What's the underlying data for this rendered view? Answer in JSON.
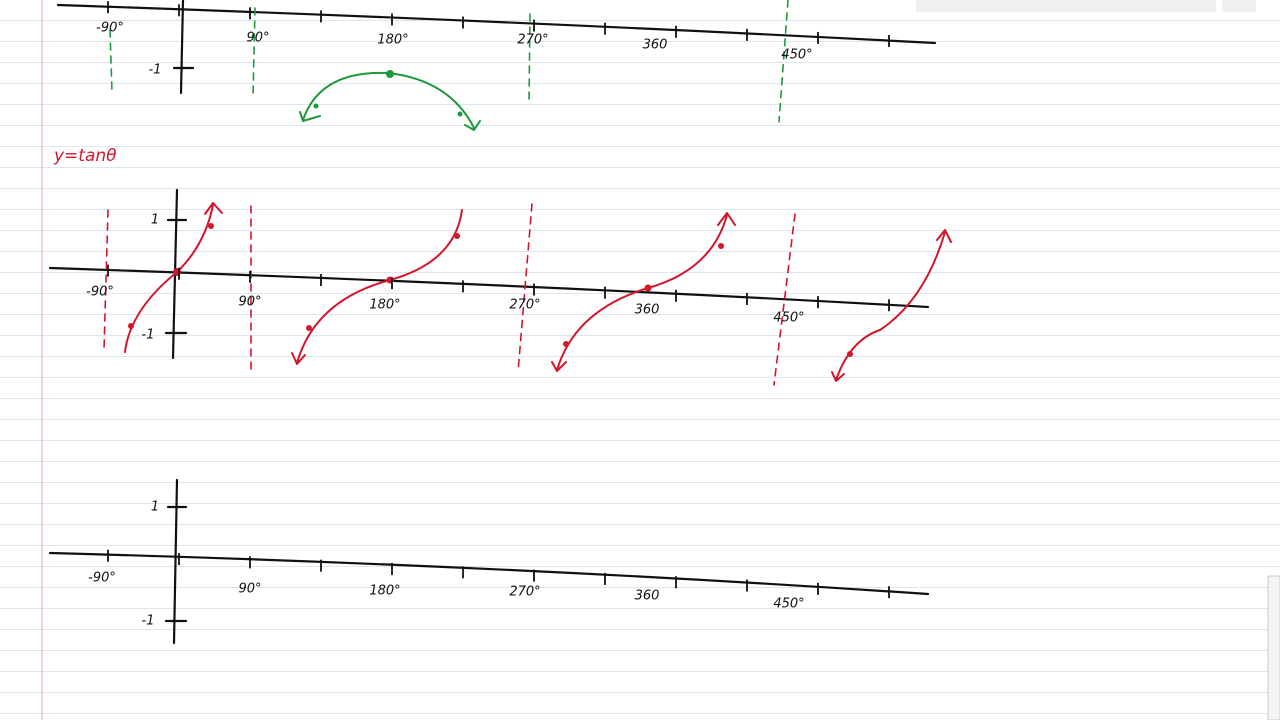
{
  "title": "y=tanθ",
  "graphs": [
    {
      "x_labels": [
        "-90°",
        "90°",
        "180°",
        "270°",
        "360",
        "450°"
      ],
      "y_labels": [
        "-1"
      ]
    },
    {
      "x_labels": [
        "-90°",
        "90°",
        "180°",
        "270°",
        "360",
        "450°"
      ],
      "y_labels": [
        "1",
        "-1"
      ]
    },
    {
      "x_labels": [
        "-90°",
        "90°",
        "180°",
        "270°",
        "360",
        "450°"
      ],
      "y_labels": [
        "1",
        "-1"
      ]
    }
  ]
}
